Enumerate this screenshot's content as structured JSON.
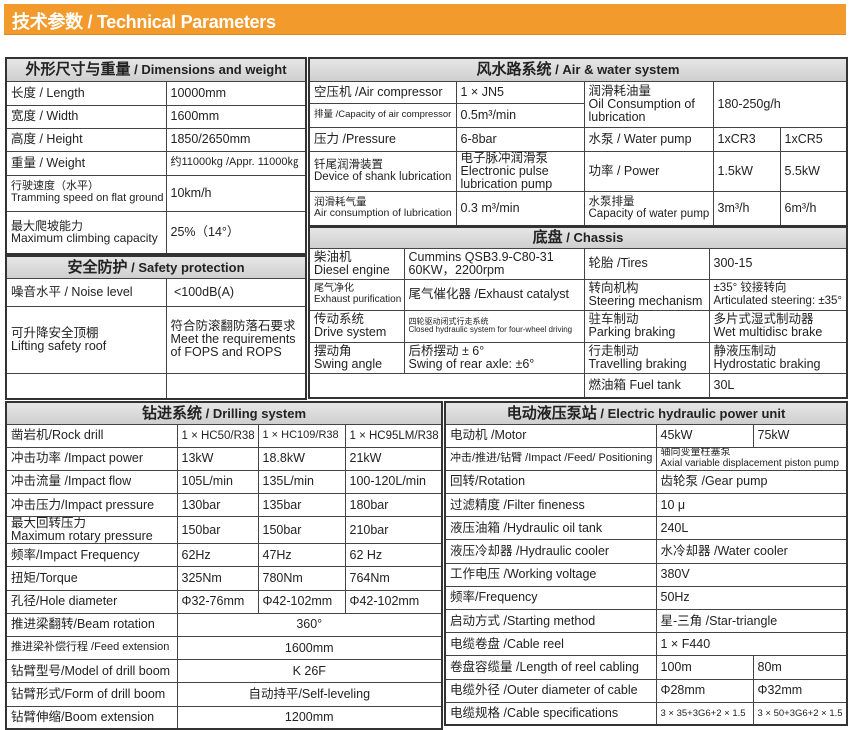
{
  "page_title": "技术参数 / Technical Parameters",
  "colors": {
    "banner": "#f39a2c",
    "header_bg": "#d9d9d9",
    "border": "#333333"
  },
  "sections": [
    {
      "id": "dimensions",
      "title_cn": "外形尺寸与重量",
      "title_en": " / Dimensions and weight",
      "rows": [
        [
          {
            "t": "长度 / Length"
          },
          {
            "t": "10000mm"
          }
        ],
        [
          {
            "t": "宽度 / Width"
          },
          {
            "t": "1600mm"
          }
        ],
        [
          {
            "t": "高度 / Height"
          },
          {
            "t": "1850/2650mm"
          }
        ],
        [
          {
            "t": "重量 / Weight"
          },
          {
            "t": "约11000kg /Appr. 11000㎏"
          }
        ],
        [
          {
            "t": "行驶速度（水平）\nTramming speed on flat ground"
          },
          {
            "t": "10km/h"
          }
        ],
        [
          {
            "t": "最大爬坡能力\nMaximum climbing capacity"
          },
          {
            "t": "25%（14°）"
          }
        ]
      ]
    },
    {
      "id": "safety",
      "title_cn": "安全防护",
      "title_en": " / Safety protection",
      "rows": [
        [
          {
            "t": "噪音水平 / Noise level"
          },
          {
            "t": " <100dB(A)"
          }
        ],
        [
          {
            "t": "可升降安全顶棚\nLifting safety roof"
          },
          {
            "t": "符合防滚翻防落石要求\nMeet the requirements\nof FOPS and ROPS"
          }
        ],
        [
          {
            "t": ""
          },
          {
            "t": ""
          }
        ]
      ]
    },
    {
      "id": "air_water",
      "title_cn": "风水路系统",
      "title_en": " / Air & water system",
      "rows": [
        [
          {
            "t": "空压机 /Air compressor"
          },
          {
            "t": "1 × JN5"
          },
          {
            "t": "润滑耗油量\nOil Consumption of\nlubrication",
            "rowspan": 2
          },
          {
            "t": "180-250g/h",
            "rowspan": 2,
            "colspan": 2
          }
        ],
        [
          {
            "t": "排量 /Capacity of air compressor"
          },
          {
            "t": "0.5m³/min"
          }
        ],
        [
          {
            "t": "压力 /Pressure"
          },
          {
            "t": "6-8bar"
          },
          {
            "t": "水泵 / Water pump"
          },
          {
            "t": "1xCR3"
          },
          {
            "t": "1xCR5"
          }
        ],
        [
          {
            "t": "钎尾润滑装置\nDevice of shank lubrication"
          },
          {
            "t": "电子脉冲润滑泵\nElectronic pulse\nlubrication pump"
          },
          {
            "t": "功率 / Power"
          },
          {
            "t": "1.5kW"
          },
          {
            "t": "5.5kW"
          }
        ],
        [
          {
            "t": "润滑耗气量\nAir consumption of lubrication"
          },
          {
            "t": "0.3 m³/min"
          },
          {
            "t": "水泵排量\nCapacity of water pump"
          },
          {
            "t": "3m³/h"
          },
          {
            "t": "6m³/h"
          }
        ]
      ]
    },
    {
      "id": "chassis",
      "title_cn": "底盘",
      "title_en": " / Chassis",
      "rows": [
        [
          {
            "t": "柴油机\nDiesel engine"
          },
          {
            "t": "Cummins QSB3.9-C80-31\n60KW，2200rpm"
          },
          {
            "t": "轮胎 /Tires"
          },
          {
            "t": "300-15"
          }
        ],
        [
          {
            "t": "尾气净化\nExhaust purification"
          },
          {
            "t": "尾气催化器 /Exhaust catalyst"
          },
          {
            "t": "转向机构\nSteering mechanism"
          },
          {
            "t": "±35° 铰接转向\nArticulated steering: ±35°"
          }
        ],
        [
          {
            "t": "传动系统\nDrive system"
          },
          {
            "t": "四轮驱动闭式行走系统\nClosed hydraulic system for four-wheel driving"
          },
          {
            "t": "驻车制动\nParking braking"
          },
          {
            "t": "多片式湿式制动器\nWet multidisc brake"
          }
        ],
        [
          {
            "t": "摆动角\nSwing angle"
          },
          {
            "t": "后桥摆动 ± 6°\nSwing of rear axle: ±6°"
          },
          {
            "t": "行走制动\nTravelling braking"
          },
          {
            "t": "静液压制动\nHydrostatic braking"
          }
        ],
        [
          {
            "t": "",
            "colspan": 2
          },
          {
            "t": "燃油箱 Fuel tank"
          },
          {
            "t": "30L"
          }
        ]
      ]
    },
    {
      "id": "drilling",
      "title_cn": "钻进系统",
      "title_en": " / Drilling system",
      "rows": [
        [
          {
            "t": "凿岩机/Rock drill"
          },
          {
            "t": "1 × HC50/R38"
          },
          {
            "t": "1 × HC109/R38"
          },
          {
            "t": "1 × HC95LM/R38"
          }
        ],
        [
          {
            "t": "冲击功率 /Impact power"
          },
          {
            "t": "13kW"
          },
          {
            "t": "18.8kW"
          },
          {
            "t": "21kW"
          }
        ],
        [
          {
            "t": "冲击流量 /Impact flow"
          },
          {
            "t": "105L/min"
          },
          {
            "t": "135L/min"
          },
          {
            "t": "100-120L/min"
          }
        ],
        [
          {
            "t": "冲击压力/Impact pressure"
          },
          {
            "t": "130bar"
          },
          {
            "t": "135bar"
          },
          {
            "t": "180bar"
          }
        ],
        [
          {
            "t": "最大回转压力\nMaximum rotary pressure"
          },
          {
            "t": "150bar"
          },
          {
            "t": "150bar"
          },
          {
            "t": "210bar"
          }
        ],
        [
          {
            "t": "频率/Impact Frequency"
          },
          {
            "t": "62Hz"
          },
          {
            "t": "47Hz"
          },
          {
            "t": "62 Hz"
          }
        ],
        [
          {
            "t": "扭矩/Torque"
          },
          {
            "t": "325Nm"
          },
          {
            "t": "780Nm"
          },
          {
            "t": "764Nm"
          }
        ],
        [
          {
            "t": "孔径/Hole diameter"
          },
          {
            "t": "Φ32-76mm"
          },
          {
            "t": "Φ42-102mm"
          },
          {
            "t": "Φ42-102mm"
          }
        ],
        [
          {
            "t": "推进梁翻转/Beam rotation"
          },
          {
            "t": "360°",
            "colspan": 3
          }
        ],
        [
          {
            "t": "推进梁补偿行程 /Feed extension"
          },
          {
            "t": "1600mm",
            "colspan": 3
          }
        ],
        [
          {
            "t": "钻臂型号/Model of drill boom"
          },
          {
            "t": "K 26F",
            "colspan": 3
          }
        ],
        [
          {
            "t": "钻臂形式/Form of drill boom"
          },
          {
            "t": "自动持平/Self-leveling",
            "colspan": 3
          }
        ],
        [
          {
            "t": "钻臂伸缩/Boom extension"
          },
          {
            "t": "1200mm",
            "colspan": 3
          }
        ]
      ]
    },
    {
      "id": "hydraulic",
      "title_cn": "电动液压泵站",
      "title_en": "  / Electric hydraulic power unit",
      "rows": [
        [
          {
            "t": "电动机 /Motor"
          },
          {
            "t": "45kW"
          },
          {
            "t": "75kW"
          }
        ],
        [
          {
            "t": "冲击/推进/钻臂 /Impact /Feed/ Positioning"
          },
          {
            "t": "轴向变量柱塞泵\nAxial variable displacement piston pump",
            "colspan": 2
          }
        ],
        [
          {
            "t": "回转/Rotation"
          },
          {
            "t": "齿轮泵 /Gear pump",
            "colspan": 2
          }
        ],
        [
          {
            "t": "过滤精度 /Filter fineness"
          },
          {
            "t": "10 μ",
            "colspan": 2
          }
        ],
        [
          {
            "t": "液压油箱 /Hydraulic oil tank"
          },
          {
            "t": "240L",
            "colspan": 2
          }
        ],
        [
          {
            "t": "液压冷却器 /Hydraulic cooler"
          },
          {
            "t": "水冷却器 /Water cooler",
            "colspan": 2
          }
        ],
        [
          {
            "t": "工作电压 /Working voltage"
          },
          {
            "t": "380V",
            "colspan": 2
          }
        ],
        [
          {
            "t": "频率/Frequency"
          },
          {
            "t": "50Hz",
            "colspan": 2
          }
        ],
        [
          {
            "t": "启动方式 /Starting method"
          },
          {
            "t": "星-三角 /Star-triangle",
            "colspan": 2
          }
        ],
        [
          {
            "t": "电缆卷盘 /Cable reel"
          },
          {
            "t": "1 × F440",
            "colspan": 2
          }
        ],
        [
          {
            "t": "卷盘容缆量 /Length of reel cabling"
          },
          {
            "t": "100m"
          },
          {
            "t": "80m"
          }
        ],
        [
          {
            "t": "电缆外径 /Outer diameter of cable"
          },
          {
            "t": "Φ28mm"
          },
          {
            "t": "Φ32mm"
          }
        ],
        [
          {
            "t": "电缆规格 /Cable specifications"
          },
          {
            "t": "3 × 35+3G6+2 × 1.5"
          },
          {
            "t": "3 × 50+3G6+2 × 1.5"
          }
        ]
      ]
    }
  ]
}
